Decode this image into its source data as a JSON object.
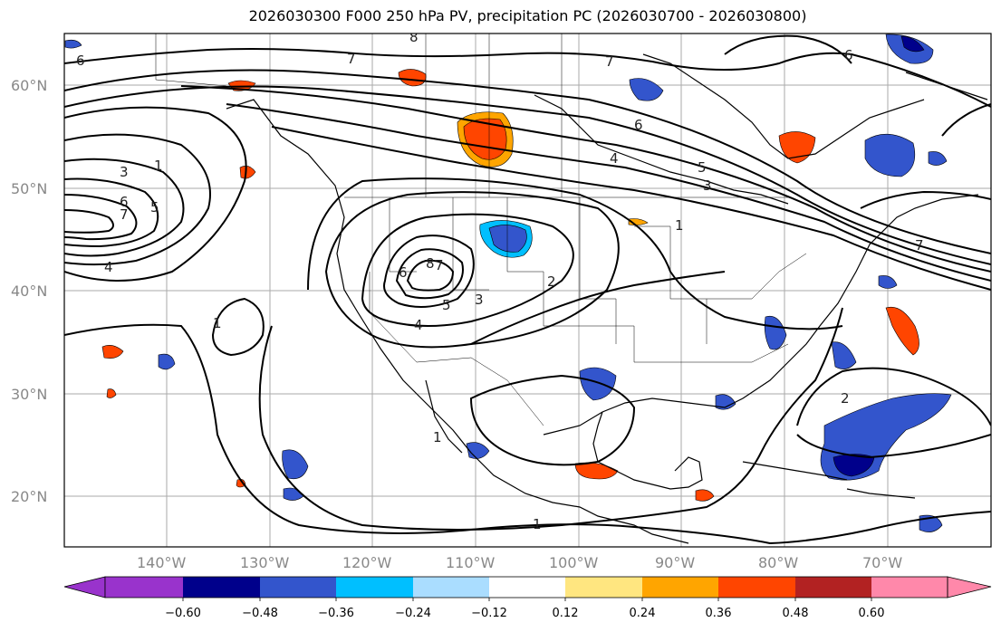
{
  "title": "2026030300 F000 250 hPa PV, precipitation PC (2026030700 - 2026030800)",
  "lat_labels": [
    "60°N",
    "50°N",
    "40°N",
    "30°N",
    "20°N"
  ],
  "lon_labels": [
    "140°W",
    "130°W",
    "120°W",
    "110°W",
    "100°W",
    "90°W",
    "80°W",
    "70°W"
  ],
  "colorbar": {
    "ticks": [
      "−0.60",
      "−0.48",
      "−0.36",
      "−0.24",
      "−0.12",
      "0.12",
      "0.24",
      "0.36",
      "0.48",
      "0.60"
    ],
    "colors": [
      "#9933cc",
      "#00008b",
      "#3355cc",
      "#00bfff",
      "#aaddff",
      "#ffffff",
      "#ffe680",
      "#ffa500",
      "#ff4500",
      "#b22222",
      "#ff88aa"
    ]
  },
  "contour_labels": [
    "6",
    "8",
    "7",
    "7",
    "6",
    "6",
    "4",
    "5",
    "3",
    "1",
    "3",
    "1",
    "6",
    "5",
    "7",
    "4",
    "8",
    "7",
    "6",
    "5",
    "4",
    "3",
    "2",
    "1",
    "1",
    "2",
    "1",
    "7"
  ]
}
